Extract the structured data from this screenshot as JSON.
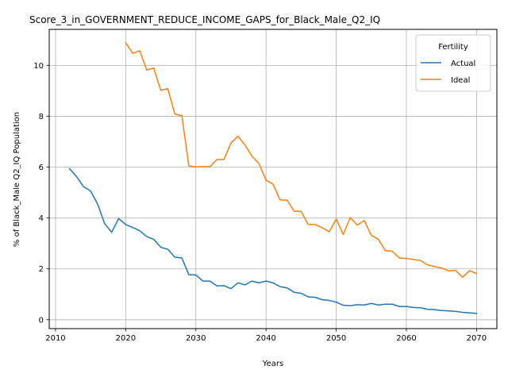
{
  "chart_data": {
    "type": "line",
    "title": "Score_3_in_GOVERNMENT_REDUCE_INCOME_GAPS_for_Black_Male_Q2_IQ",
    "xlabel": "Years",
    "ylabel": "% of Black_Male Q2_IQ Population",
    "xlim": [
      2009.1,
      2072.9
    ],
    "ylim": [
      -0.35,
      11.42
    ],
    "xticks": [
      2010,
      2020,
      2030,
      2040,
      2050,
      2060,
      2070
    ],
    "yticks": [
      0,
      2,
      4,
      6,
      8,
      10
    ],
    "grid": true,
    "legend": {
      "title": "Fertility",
      "placement": "top-right"
    },
    "series": [
      {
        "name": "Actual",
        "color": "#1f77b4",
        "x": [
          2012,
          2013,
          2014,
          2015,
          2016,
          2017,
          2018,
          2019,
          2020,
          2021,
          2022,
          2023,
          2024,
          2025,
          2026,
          2027,
          2028,
          2029,
          2030,
          2031,
          2032,
          2033,
          2034,
          2035,
          2036,
          2037,
          2038,
          2039,
          2040,
          2041,
          2042,
          2043,
          2044,
          2045,
          2046,
          2047,
          2048,
          2049,
          2050,
          2051,
          2052,
          2053,
          2054,
          2055,
          2056,
          2057,
          2058,
          2059,
          2060,
          2061,
          2062,
          2063,
          2064,
          2065,
          2066,
          2067,
          2068,
          2069,
          2070
        ],
        "values": [
          5.94,
          5.63,
          5.23,
          5.06,
          4.55,
          3.78,
          3.44,
          3.98,
          3.74,
          3.63,
          3.5,
          3.27,
          3.16,
          2.85,
          2.77,
          2.46,
          2.43,
          1.77,
          1.76,
          1.52,
          1.52,
          1.33,
          1.34,
          1.22,
          1.45,
          1.37,
          1.52,
          1.45,
          1.52,
          1.45,
          1.3,
          1.25,
          1.08,
          1.04,
          0.9,
          0.88,
          0.79,
          0.76,
          0.69,
          0.57,
          0.55,
          0.59,
          0.58,
          0.64,
          0.58,
          0.61,
          0.61,
          0.52,
          0.52,
          0.48,
          0.47,
          0.41,
          0.4,
          0.36,
          0.35,
          0.33,
          0.29,
          0.27,
          0.25
        ]
      },
      {
        "name": "Ideal",
        "color": "#ff7f0e",
        "x": [
          2020,
          2021,
          2022,
          2023,
          2024,
          2025,
          2026,
          2027,
          2028,
          2029,
          2030,
          2031,
          2032,
          2033,
          2034,
          2035,
          2036,
          2037,
          2038,
          2039,
          2040,
          2041,
          2042,
          2043,
          2044,
          2045,
          2046,
          2047,
          2048,
          2049,
          2050,
          2051,
          2052,
          2053,
          2054,
          2055,
          2056,
          2057,
          2058,
          2059,
          2060,
          2061,
          2062,
          2063,
          2064,
          2065,
          2066,
          2067,
          2068,
          2069,
          2070
        ],
        "values": [
          10.89,
          10.48,
          10.58,
          9.82,
          9.9,
          9.02,
          9.09,
          8.09,
          8.03,
          6.05,
          6.01,
          6.02,
          6.02,
          6.3,
          6.3,
          6.95,
          7.22,
          6.87,
          6.43,
          6.14,
          5.49,
          5.33,
          4.71,
          4.7,
          4.27,
          4.26,
          3.75,
          3.74,
          3.62,
          3.46,
          3.96,
          3.35,
          4.02,
          3.72,
          3.9,
          3.32,
          3.16,
          2.72,
          2.69,
          2.43,
          2.41,
          2.37,
          2.33,
          2.16,
          2.09,
          2.04,
          1.92,
          1.94,
          1.67,
          1.93,
          1.82
        ]
      }
    ]
  }
}
